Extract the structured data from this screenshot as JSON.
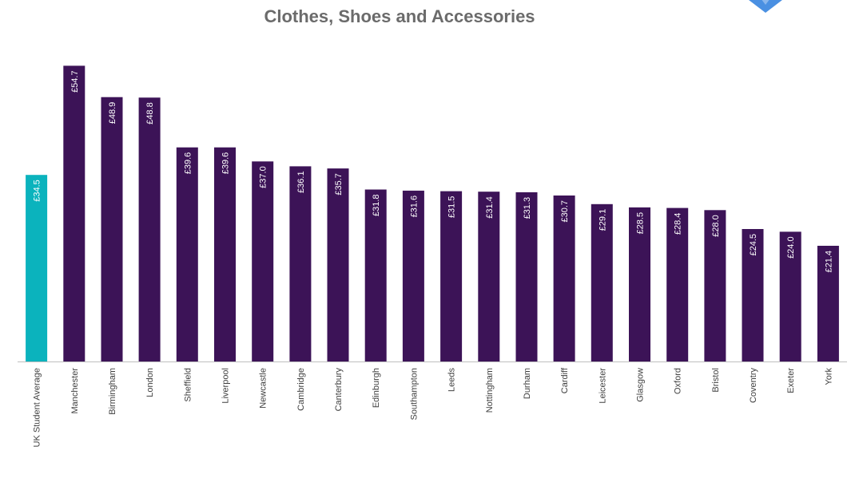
{
  "chart_data": {
    "type": "bar",
    "title": "Clothes, Shoes and Accessories",
    "xlabel": "",
    "ylabel": "",
    "ylim": [
      0,
      58
    ],
    "grid": false,
    "legend": "none",
    "value_prefix": "£",
    "categories": [
      "UK Student Average",
      "Manchester",
      "Birmingham",
      "London",
      "Sheffield",
      "Liverpool",
      "Newcastle",
      "Cambridge",
      "Canterbury",
      "Edinburgh",
      "Southampton",
      "Leeds",
      "Nottingham",
      "Durham",
      "Cardiff",
      "Leicester",
      "Glasgow",
      "Oxford",
      "Bristol",
      "Coventry",
      "Exeter",
      "York"
    ],
    "values": [
      34.5,
      54.7,
      48.9,
      48.8,
      39.6,
      39.6,
      37.0,
      36.1,
      35.7,
      31.8,
      31.6,
      31.5,
      31.4,
      31.3,
      30.7,
      29.1,
      28.5,
      28.4,
      28.0,
      24.5,
      24.0,
      21.4
    ],
    "data_labels": [
      "£34.5",
      "£54.7",
      "£48.9",
      "£48.8",
      "£39.6",
      "£39.6",
      "£37.0",
      "£36.1",
      "£35.7",
      "£31.8",
      "£31.6",
      "£31.5",
      "£31.4",
      "£31.3",
      "£30.7",
      "£29.1",
      "£28.5",
      "£28.4",
      "£28.0",
      "£24.5",
      "£24.0",
      "£21.4"
    ],
    "colors": {
      "average": "#0bb3bd",
      "city": "#3c1357",
      "label": "#ffffff",
      "title": "#6b6b6b",
      "axis": "#bfbfbf",
      "tick_label": "#404040",
      "logo": "#4a90e2"
    }
  }
}
